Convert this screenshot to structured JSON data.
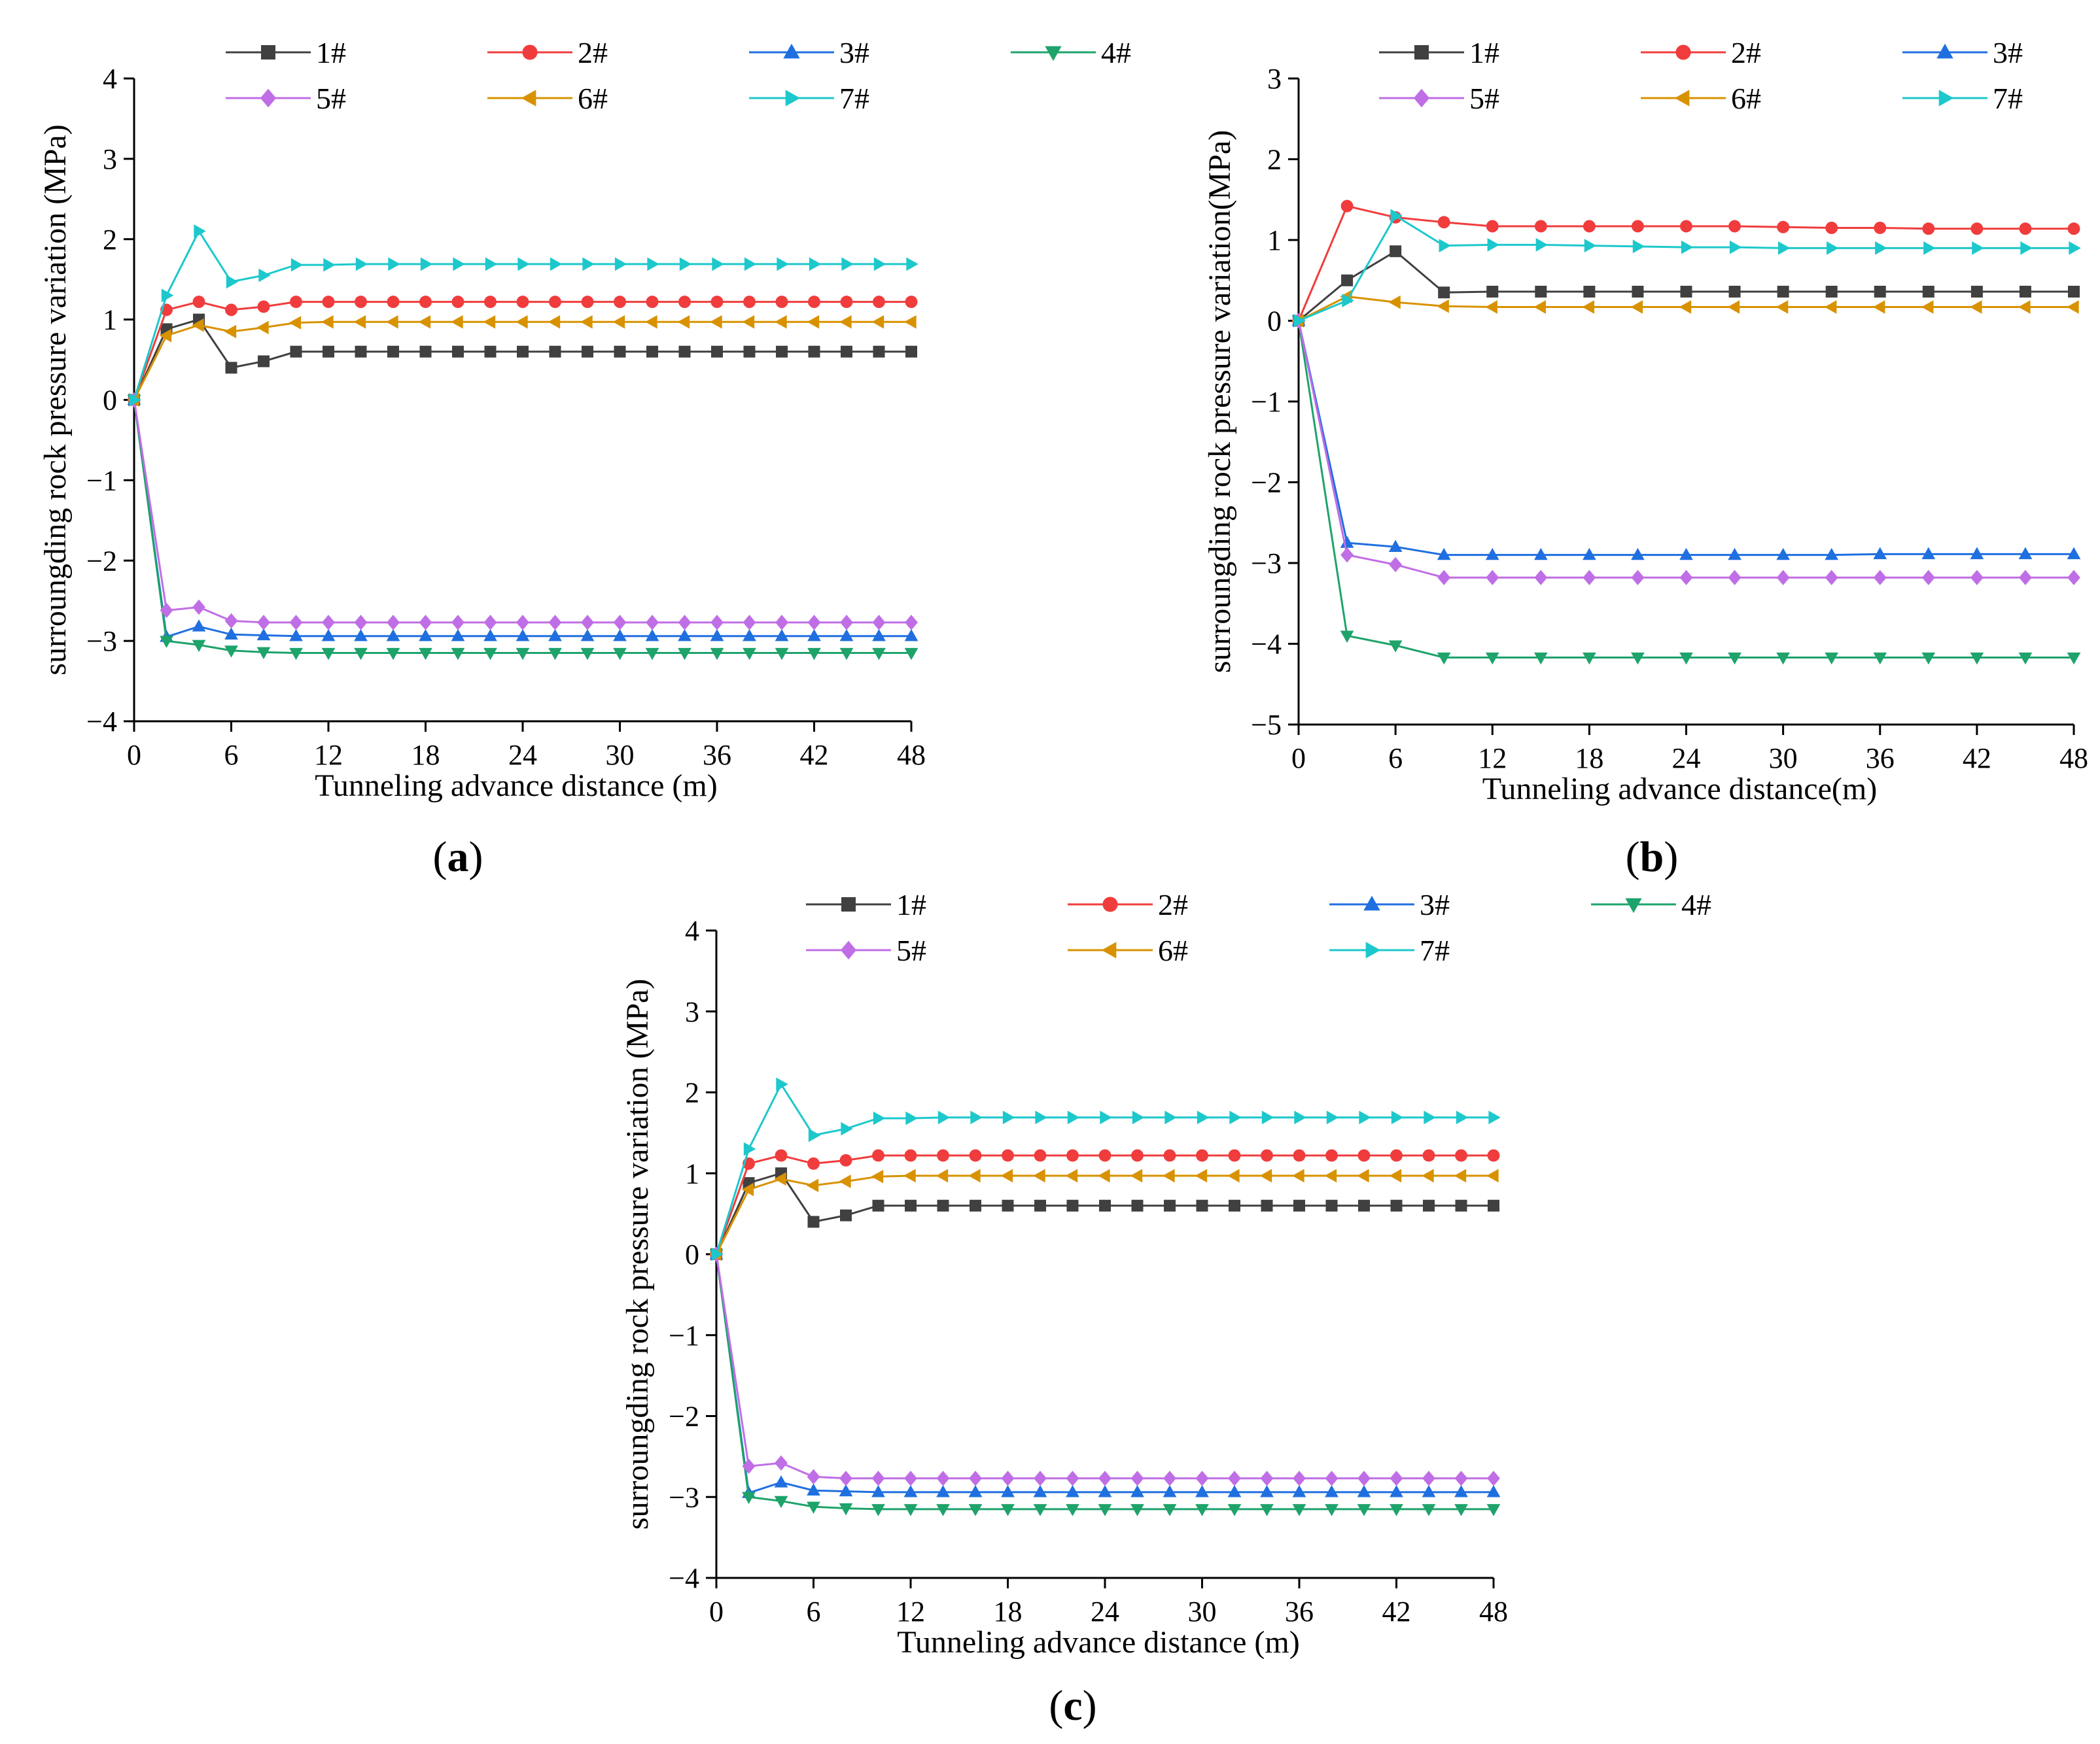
{
  "figure": {
    "description_labels": [
      "(a)",
      "(b)",
      "(c)"
    ]
  },
  "series_styles": [
    {
      "name": "1#",
      "color": "#404040",
      "marker": "square"
    },
    {
      "name": "2#",
      "color": "#f03c3c",
      "marker": "circle"
    },
    {
      "name": "3#",
      "color": "#1f6fe0",
      "marker": "triangle-up"
    },
    {
      "name": "4#",
      "color": "#1ea36a",
      "marker": "triangle-down"
    },
    {
      "name": "5#",
      "color": "#c06ee6",
      "marker": "diamond"
    },
    {
      "name": "6#",
      "color": "#d89200",
      "marker": "triangle-left"
    },
    {
      "name": "7#",
      "color": "#1cc8cc",
      "marker": "triangle-right"
    }
  ],
  "chart_data": [
    {
      "panel": "a",
      "panel_label": {
        "open": "(",
        "letter": "a",
        "close": ")"
      },
      "type": "line",
      "xlabel": "Tunneling advance distance (m)",
      "ylabel": "surroungding rock pressure variation (MPa)",
      "xlim": [
        0,
        48
      ],
      "ylim": [
        -4,
        4
      ],
      "xticks": [
        "0",
        "6",
        "12",
        "18",
        "24",
        "30",
        "36",
        "42",
        "48"
      ],
      "yticks": [
        "4",
        "3",
        "2",
        "1",
        "0",
        "−1",
        "−2",
        "−3",
        "−4"
      ],
      "x": [
        0,
        2,
        4,
        6,
        8,
        10,
        12,
        14,
        16,
        18,
        20,
        22,
        24,
        26,
        28,
        30,
        32,
        34,
        36,
        38,
        40,
        42,
        44,
        46,
        48
      ],
      "series": [
        {
          "name": "1#",
          "values": [
            0,
            0.88,
            1.0,
            0.4,
            0.48,
            0.6,
            0.6,
            0.6,
            0.6,
            0.6,
            0.6,
            0.6,
            0.6,
            0.6,
            0.6,
            0.6,
            0.6,
            0.6,
            0.6,
            0.6,
            0.6,
            0.6,
            0.6,
            0.6,
            0.6
          ]
        },
        {
          "name": "2#",
          "values": [
            0,
            1.12,
            1.22,
            1.12,
            1.16,
            1.22,
            1.22,
            1.22,
            1.22,
            1.22,
            1.22,
            1.22,
            1.22,
            1.22,
            1.22,
            1.22,
            1.22,
            1.22,
            1.22,
            1.22,
            1.22,
            1.22,
            1.22,
            1.22,
            1.22
          ]
        },
        {
          "name": "3#",
          "values": [
            0,
            -2.95,
            -2.82,
            -2.92,
            -2.93,
            -2.94,
            -2.94,
            -2.94,
            -2.94,
            -2.94,
            -2.94,
            -2.94,
            -2.94,
            -2.94,
            -2.94,
            -2.94,
            -2.94,
            -2.94,
            -2.94,
            -2.94,
            -2.94,
            -2.94,
            -2.94,
            -2.94,
            -2.94
          ]
        },
        {
          "name": "4#",
          "values": [
            0,
            -3.0,
            -3.05,
            -3.12,
            -3.14,
            -3.15,
            -3.15,
            -3.15,
            -3.15,
            -3.15,
            -3.15,
            -3.15,
            -3.15,
            -3.15,
            -3.15,
            -3.15,
            -3.15,
            -3.15,
            -3.15,
            -3.15,
            -3.15,
            -3.15,
            -3.15,
            -3.15,
            -3.15
          ]
        },
        {
          "name": "5#",
          "values": [
            0,
            -2.62,
            -2.58,
            -2.75,
            -2.77,
            -2.77,
            -2.77,
            -2.77,
            -2.77,
            -2.77,
            -2.77,
            -2.77,
            -2.77,
            -2.77,
            -2.77,
            -2.77,
            -2.77,
            -2.77,
            -2.77,
            -2.77,
            -2.77,
            -2.77,
            -2.77,
            -2.77,
            -2.77
          ]
        },
        {
          "name": "6#",
          "values": [
            0,
            0.8,
            0.93,
            0.85,
            0.9,
            0.96,
            0.97,
            0.97,
            0.97,
            0.97,
            0.97,
            0.97,
            0.97,
            0.97,
            0.97,
            0.97,
            0.97,
            0.97,
            0.97,
            0.97,
            0.97,
            0.97,
            0.97,
            0.97,
            0.97
          ]
        },
        {
          "name": "7#",
          "values": [
            0,
            1.3,
            2.1,
            1.47,
            1.55,
            1.68,
            1.68,
            1.69,
            1.69,
            1.69,
            1.69,
            1.69,
            1.69,
            1.69,
            1.69,
            1.69,
            1.69,
            1.69,
            1.69,
            1.69,
            1.69,
            1.69,
            1.69,
            1.69,
            1.69
          ]
        }
      ]
    },
    {
      "panel": "b",
      "panel_label": {
        "open": "(",
        "letter": "b",
        "close": ")"
      },
      "type": "line",
      "xlabel": "Tunneling advance distance(m)",
      "ylabel": "surroungding rock pressure variation(MPa)",
      "xlim": [
        0,
        48
      ],
      "ylim": [
        -5,
        3
      ],
      "xticks": [
        "0",
        "6",
        "12",
        "18",
        "24",
        "30",
        "36",
        "42",
        "48"
      ],
      "yticks": [
        "3",
        "2",
        "1",
        "0",
        "−1",
        "−2",
        "−3",
        "−4",
        "−5"
      ],
      "x": [
        0,
        3,
        6,
        9,
        12,
        15,
        18,
        21,
        24,
        27,
        30,
        33,
        36,
        39,
        42,
        45,
        48
      ],
      "series": [
        {
          "name": "1#",
          "values": [
            0,
            0.5,
            0.86,
            0.35,
            0.36,
            0.36,
            0.36,
            0.36,
            0.36,
            0.36,
            0.36,
            0.36,
            0.36,
            0.36,
            0.36,
            0.36,
            0.36
          ]
        },
        {
          "name": "2#",
          "values": [
            0,
            1.42,
            1.28,
            1.22,
            1.17,
            1.17,
            1.17,
            1.17,
            1.17,
            1.17,
            1.16,
            1.15,
            1.15,
            1.14,
            1.14,
            1.14,
            1.14
          ]
        },
        {
          "name": "3#",
          "values": [
            0,
            -2.75,
            -2.8,
            -2.9,
            -2.9,
            -2.9,
            -2.9,
            -2.9,
            -2.9,
            -2.9,
            -2.9,
            -2.9,
            -2.89,
            -2.89,
            -2.89,
            -2.89,
            -2.89
          ]
        },
        {
          "name": "4#",
          "values": [
            0,
            -3.9,
            -4.02,
            -4.17,
            -4.17,
            -4.17,
            -4.17,
            -4.17,
            -4.17,
            -4.17,
            -4.17,
            -4.17,
            -4.17,
            -4.17,
            -4.17,
            -4.17,
            -4.17
          ]
        },
        {
          "name": "5#",
          "values": [
            0,
            -2.9,
            -3.02,
            -3.18,
            -3.18,
            -3.18,
            -3.18,
            -3.18,
            -3.18,
            -3.18,
            -3.18,
            -3.18,
            -3.18,
            -3.18,
            -3.18,
            -3.18,
            -3.18
          ]
        },
        {
          "name": "6#",
          "values": [
            0,
            0.3,
            0.23,
            0.18,
            0.17,
            0.17,
            0.17,
            0.17,
            0.17,
            0.17,
            0.17,
            0.17,
            0.17,
            0.17,
            0.17,
            0.17,
            0.17
          ]
        },
        {
          "name": "7#",
          "values": [
            0,
            0.25,
            1.3,
            0.93,
            0.94,
            0.94,
            0.93,
            0.92,
            0.91,
            0.91,
            0.9,
            0.9,
            0.9,
            0.9,
            0.9,
            0.9,
            0.9
          ]
        }
      ]
    },
    {
      "panel": "c",
      "panel_label": {
        "open": "(",
        "letter": "c",
        "close": ")"
      },
      "type": "line",
      "xlabel": "Tunneling advance distance (m)",
      "ylabel": "surroungding rock pressure variation (MPa)",
      "xlim": [
        0,
        48
      ],
      "ylim": [
        -4,
        4
      ],
      "xticks": [
        "0",
        "6",
        "12",
        "18",
        "24",
        "30",
        "36",
        "42",
        "48"
      ],
      "yticks": [
        "4",
        "3",
        "2",
        "1",
        "0",
        "−1",
        "−2",
        "−3",
        "−4"
      ],
      "x": [
        0,
        2,
        4,
        6,
        8,
        10,
        12,
        14,
        16,
        18,
        20,
        22,
        24,
        26,
        28,
        30,
        32,
        34,
        36,
        38,
        40,
        42,
        44,
        46,
        48
      ],
      "series": [
        {
          "name": "1#",
          "values": [
            0,
            0.88,
            1.0,
            0.4,
            0.48,
            0.6,
            0.6,
            0.6,
            0.6,
            0.6,
            0.6,
            0.6,
            0.6,
            0.6,
            0.6,
            0.6,
            0.6,
            0.6,
            0.6,
            0.6,
            0.6,
            0.6,
            0.6,
            0.6,
            0.6
          ]
        },
        {
          "name": "2#",
          "values": [
            0,
            1.12,
            1.22,
            1.12,
            1.16,
            1.22,
            1.22,
            1.22,
            1.22,
            1.22,
            1.22,
            1.22,
            1.22,
            1.22,
            1.22,
            1.22,
            1.22,
            1.22,
            1.22,
            1.22,
            1.22,
            1.22,
            1.22,
            1.22,
            1.22
          ]
        },
        {
          "name": "3#",
          "values": [
            0,
            -2.95,
            -2.82,
            -2.92,
            -2.93,
            -2.94,
            -2.94,
            -2.94,
            -2.94,
            -2.94,
            -2.94,
            -2.94,
            -2.94,
            -2.94,
            -2.94,
            -2.94,
            -2.94,
            -2.94,
            -2.94,
            -2.94,
            -2.94,
            -2.94,
            -2.94,
            -2.94,
            -2.94
          ]
        },
        {
          "name": "4#",
          "values": [
            0,
            -3.0,
            -3.05,
            -3.12,
            -3.14,
            -3.15,
            -3.15,
            -3.15,
            -3.15,
            -3.15,
            -3.15,
            -3.15,
            -3.15,
            -3.15,
            -3.15,
            -3.15,
            -3.15,
            -3.15,
            -3.15,
            -3.15,
            -3.15,
            -3.15,
            -3.15,
            -3.15,
            -3.15
          ]
        },
        {
          "name": "5#",
          "values": [
            0,
            -2.62,
            -2.58,
            -2.75,
            -2.77,
            -2.77,
            -2.77,
            -2.77,
            -2.77,
            -2.77,
            -2.77,
            -2.77,
            -2.77,
            -2.77,
            -2.77,
            -2.77,
            -2.77,
            -2.77,
            -2.77,
            -2.77,
            -2.77,
            -2.77,
            -2.77,
            -2.77,
            -2.77
          ]
        },
        {
          "name": "6#",
          "values": [
            0,
            0.8,
            0.93,
            0.85,
            0.9,
            0.96,
            0.97,
            0.97,
            0.97,
            0.97,
            0.97,
            0.97,
            0.97,
            0.97,
            0.97,
            0.97,
            0.97,
            0.97,
            0.97,
            0.97,
            0.97,
            0.97,
            0.97,
            0.97,
            0.97
          ]
        },
        {
          "name": "7#",
          "values": [
            0,
            1.3,
            2.1,
            1.47,
            1.55,
            1.68,
            1.68,
            1.69,
            1.69,
            1.69,
            1.69,
            1.69,
            1.69,
            1.69,
            1.69,
            1.69,
            1.69,
            1.69,
            1.69,
            1.69,
            1.69,
            1.69,
            1.69,
            1.69,
            1.69
          ]
        }
      ]
    }
  ]
}
